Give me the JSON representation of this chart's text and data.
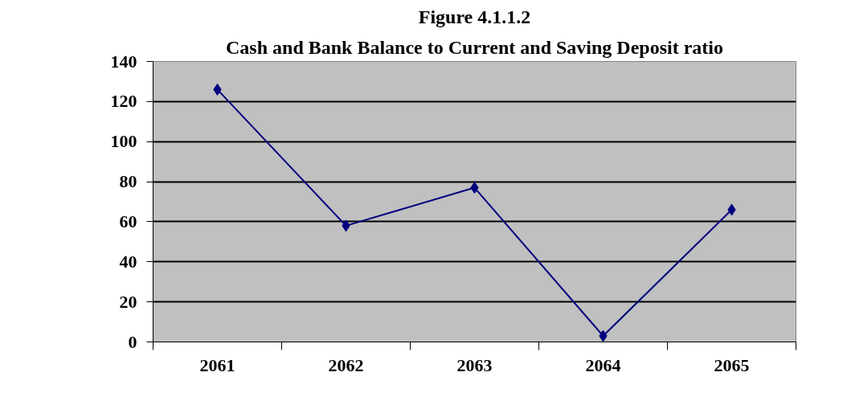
{
  "chart_data": {
    "type": "line",
    "title": "Cash and Bank Balance to Current and Saving Deposit ratio",
    "subtitle": "Figure 4.1.1.2",
    "categories": [
      "2061",
      "2062",
      "2063",
      "2064",
      "2065"
    ],
    "series": [
      {
        "color": "#000080",
        "values": [
          126,
          58,
          77,
          3,
          66
        ]
      }
    ],
    "ylim": [
      0,
      140
    ],
    "yticks": [
      0,
      20,
      40,
      60,
      80,
      100,
      120,
      140
    ],
    "grid": "y",
    "marker": "diamond",
    "line_style": "solid"
  }
}
